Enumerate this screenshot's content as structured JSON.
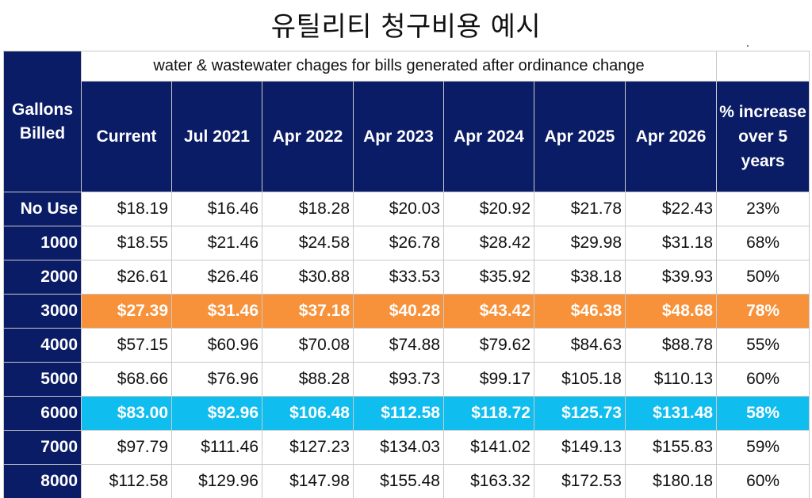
{
  "title": "유틸리티 청구비용 예시",
  "table": {
    "subtitle": "water & wastewater chages for bills generated after ordinance change",
    "row_header": "Gallons Billed",
    "columns": [
      "Current",
      "Jul 2021",
      "Apr 2022",
      "Apr 2023",
      "Apr 2024",
      "Apr 2025",
      "Apr 2026"
    ],
    "pct_header": "% increase over 5 years",
    "highlight_colors": {
      "orange": "#f7923a",
      "cyan": "#10bdef",
      "navy": "#0b1c66"
    },
    "rows": [
      {
        "label": "No Use",
        "values": [
          "$18.19",
          "$16.46",
          "$18.28",
          "$20.03",
          "$20.92",
          "$21.78",
          "$22.43"
        ],
        "pct": "23%",
        "highlight": ""
      },
      {
        "label": "1000",
        "values": [
          "$18.55",
          "$21.46",
          "$24.58",
          "$26.78",
          "$28.42",
          "$29.98",
          "$31.18"
        ],
        "pct": "68%",
        "highlight": ""
      },
      {
        "label": "2000",
        "values": [
          "$26.61",
          "$26.46",
          "$30.88",
          "$33.53",
          "$35.92",
          "$38.18",
          "$39.93"
        ],
        "pct": "50%",
        "highlight": ""
      },
      {
        "label": "3000",
        "values": [
          "$27.39",
          "$31.46",
          "$37.18",
          "$40.28",
          "$43.42",
          "$46.38",
          "$48.68"
        ],
        "pct": "78%",
        "highlight": "orange"
      },
      {
        "label": "4000",
        "values": [
          "$57.15",
          "$60.96",
          "$70.08",
          "$74.88",
          "$79.62",
          "$84.63",
          "$88.78"
        ],
        "pct": "55%",
        "highlight": ""
      },
      {
        "label": "5000",
        "values": [
          "$68.66",
          "$76.96",
          "$88.28",
          "$93.73",
          "$99.17",
          "$105.18",
          "$110.13"
        ],
        "pct": "60%",
        "highlight": ""
      },
      {
        "label": "6000",
        "values": [
          "$83.00",
          "$92.96",
          "$106.48",
          "$112.58",
          "$118.72",
          "$125.73",
          "$131.48"
        ],
        "pct": "58%",
        "highlight": "cyan"
      },
      {
        "label": "7000",
        "values": [
          "$97.79",
          "$111.46",
          "$127.23",
          "$134.03",
          "$141.02",
          "$149.13",
          "$155.83"
        ],
        "pct": "59%",
        "highlight": ""
      },
      {
        "label": "8000",
        "values": [
          "$112.58",
          "$129.96",
          "$147.98",
          "$155.48",
          "$163.32",
          "$172.53",
          "$180.18"
        ],
        "pct": "60%",
        "highlight": ""
      }
    ]
  }
}
